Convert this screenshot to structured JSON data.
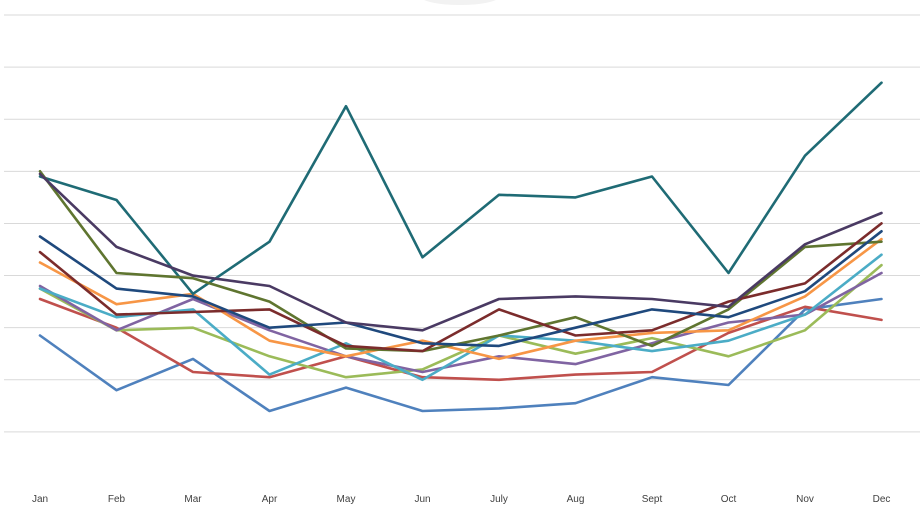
{
  "chart_data": {
    "type": "line",
    "title": "",
    "xlabel": "",
    "ylabel": "",
    "categories": [
      "Jan",
      "Feb",
      "Mar",
      "Apr",
      "May",
      "Jun",
      "July",
      "Aug",
      "Sept",
      "Oct",
      "Nov",
      "Dec"
    ],
    "ylim": [
      0,
      9
    ],
    "gridlines": [
      1,
      2,
      3,
      4,
      5,
      6,
      7,
      8,
      9
    ],
    "grid": true,
    "legend": "none",
    "series": [
      {
        "color": "#4f81bd",
        "values": [
          2.85,
          1.8,
          2.4,
          1.4,
          1.85,
          1.4,
          1.45,
          1.55,
          2.05,
          1.9,
          3.35,
          3.55
        ]
      },
      {
        "color": "#c0504d",
        "values": [
          3.55,
          3.0,
          2.15,
          2.05,
          2.45,
          2.05,
          2.0,
          2.1,
          2.15,
          2.9,
          3.4,
          3.15
        ]
      },
      {
        "color": "#9bbb59",
        "values": [
          3.75,
          2.95,
          3.0,
          2.45,
          2.05,
          2.2,
          2.85,
          2.5,
          2.8,
          2.45,
          2.95,
          4.2
        ]
      },
      {
        "color": "#8064a2",
        "values": [
          3.8,
          2.95,
          3.55,
          2.95,
          2.45,
          2.15,
          2.45,
          2.3,
          2.7,
          3.1,
          3.25,
          4.05
        ]
      },
      {
        "color": "#4bacc6",
        "values": [
          3.75,
          3.2,
          3.35,
          2.1,
          2.7,
          2.0,
          2.85,
          2.75,
          2.55,
          2.75,
          3.25,
          4.4
        ]
      },
      {
        "color": "#f79646",
        "values": [
          4.25,
          3.45,
          3.65,
          2.75,
          2.45,
          2.75,
          2.4,
          2.75,
          2.9,
          2.95,
          3.6,
          4.7
        ]
      },
      {
        "color": "#1f6b75",
        "values": [
          5.9,
          5.45,
          3.65,
          4.65,
          7.25,
          4.35,
          5.55,
          5.5,
          5.9,
          4.05,
          6.3,
          7.7
        ]
      },
      {
        "color": "#5f7530",
        "values": [
          6.0,
          4.05,
          3.95,
          3.5,
          2.6,
          2.55,
          2.85,
          3.2,
          2.65,
          3.35,
          4.55,
          4.65
        ]
      },
      {
        "color": "#7b2c2c",
        "values": [
          4.45,
          3.25,
          3.3,
          3.35,
          2.65,
          2.55,
          3.35,
          2.85,
          2.95,
          3.5,
          3.85,
          5.0
        ]
      },
      {
        "color": "#1f497d",
        "values": [
          4.75,
          3.75,
          3.6,
          3.0,
          3.1,
          2.7,
          2.65,
          3.0,
          3.35,
          3.2,
          3.7,
          4.85
        ]
      },
      {
        "color": "#4a3a63",
        "values": [
          5.95,
          4.55,
          4.0,
          3.8,
          3.1,
          2.95,
          3.55,
          3.6,
          3.55,
          3.4,
          4.6,
          5.2
        ]
      }
    ]
  }
}
